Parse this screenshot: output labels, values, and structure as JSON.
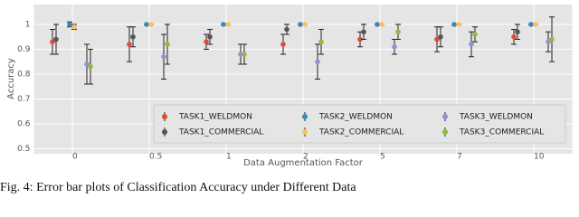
{
  "chart_data": {
    "type": "errorbar",
    "caption": "Fig. 4: Error bar plots of Classification Accuracy under Different Data",
    "xlabel": "Data Augmentation Factor",
    "ylabel": "Accuracy",
    "categories": [
      "0",
      "0.5",
      "1",
      "2",
      "5",
      "7",
      "10"
    ],
    "ylim": [
      0.48,
      1.08
    ],
    "yticks": [
      0.5,
      0.6,
      0.7,
      0.8,
      0.9,
      1.0
    ],
    "grid": true,
    "series": [
      {
        "name": "TASK1_WELDMON",
        "color": "#E24A33",
        "values": [
          0.93,
          0.92,
          0.93,
          0.92,
          0.94,
          0.94,
          0.95
        ],
        "errors": [
          0.05,
          0.07,
          0.03,
          0.04,
          0.03,
          0.05,
          0.03
        ]
      },
      {
        "name": "TASK1_COMMERCIAL",
        "color": "#555555",
        "values": [
          0.94,
          0.95,
          0.95,
          0.98,
          0.97,
          0.95,
          0.97
        ],
        "errors": [
          0.06,
          0.04,
          0.03,
          0.02,
          0.03,
          0.04,
          0.03
        ]
      },
      {
        "name": "TASK2_WELDMON",
        "color": "#348ABD",
        "values": [
          1.0,
          1.0,
          1.0,
          1.0,
          1.0,
          1.0,
          1.0
        ],
        "errors": [
          0.01,
          0.0,
          0.0,
          0.0,
          0.0,
          0.0,
          0.0
        ]
      },
      {
        "name": "TASK2_COMMERCIAL",
        "color": "#FBC15E",
        "values": [
          0.99,
          1.0,
          1.0,
          1.0,
          1.0,
          1.0,
          1.0
        ],
        "errors": [
          0.01,
          0.0,
          0.0,
          0.0,
          0.0,
          0.0,
          0.0
        ]
      },
      {
        "name": "TASK3_WELDMON",
        "color": "#988ED5",
        "values": [
          0.84,
          0.87,
          0.88,
          0.85,
          0.91,
          0.92,
          0.93
        ],
        "errors": [
          0.08,
          0.09,
          0.04,
          0.07,
          0.03,
          0.05,
          0.04
        ]
      },
      {
        "name": "TASK3_COMMERCIAL",
        "color": "#8EBA42",
        "values": [
          0.83,
          0.92,
          0.88,
          0.93,
          0.97,
          0.96,
          0.94
        ],
        "errors": [
          0.07,
          0.08,
          0.04,
          0.05,
          0.03,
          0.03,
          0.09
        ]
      }
    ]
  }
}
